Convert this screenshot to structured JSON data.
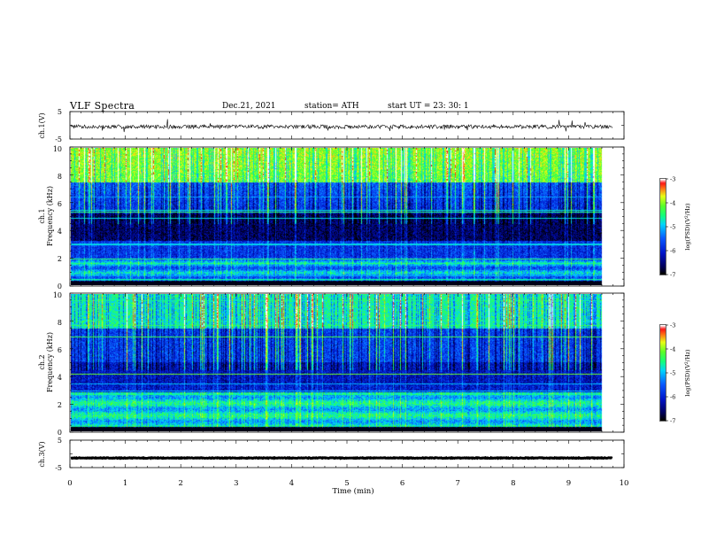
{
  "header": {
    "title": "VLF  Spectra",
    "date": "Dec.21, 2021",
    "station": "station= ATH",
    "start": "start  UT  =     23: 30: 1"
  },
  "chart_data": [
    {
      "type": "line",
      "panel": "ch1-waveform",
      "ylabel": "ch.1(V)",
      "ylim": [
        -5,
        5
      ],
      "y_ticks": [
        "5",
        "-5"
      ],
      "xlim": [
        0,
        10
      ],
      "approx_level": -0.5,
      "color": "#000000"
    },
    {
      "type": "heatmap",
      "panel": "ch1-spectrogram",
      "ylabel": "ch.1 Frequency (kHz)",
      "ylim": [
        0,
        10
      ],
      "y_ticks": [
        "0",
        "2",
        "4",
        "6",
        "8",
        "10"
      ],
      "xlim": [
        0,
        10
      ],
      "colorbar": {
        "label": "log(PSD)(V²/Hz)",
        "ticks": [
          "-3",
          "-4",
          "-5",
          "-6",
          "-7"
        ],
        "range": [
          -7,
          -3
        ]
      }
    },
    {
      "type": "heatmap",
      "panel": "ch2-spectrogram",
      "ylabel": "ch.2 Frequency (kHz)",
      "ylim": [
        0,
        10
      ],
      "y_ticks": [
        "0",
        "2",
        "4",
        "6",
        "8",
        "10"
      ],
      "xlim": [
        0,
        10
      ],
      "colorbar": {
        "label": "log(PSD)(V²/Hz)",
        "ticks": [
          "-3",
          "-4",
          "-5",
          "-6",
          "-7"
        ],
        "range": [
          -7,
          -3
        ]
      }
    },
    {
      "type": "line",
      "panel": "ch3-waveform",
      "ylabel": "ch.3(V)",
      "ylim": [
        -5,
        5
      ],
      "y_ticks": [
        "5",
        "-5"
      ],
      "xlim": [
        0,
        10
      ],
      "approx_level": -1.5,
      "color": "#000000"
    }
  ],
  "x_axis": {
    "xlabel": "Time  (min)",
    "tick_labels": [
      "0",
      "1",
      "2",
      "3",
      "4",
      "5",
      "6",
      "7",
      "8",
      "9",
      "10"
    ],
    "xlim": [
      0,
      10
    ],
    "data_extent": 9.8
  },
  "colors": {
    "background": "#000000",
    "deep_blue": "#000a8c",
    "blue": "#1040ff",
    "cyan": "#00d0ff",
    "green": "#40ff40",
    "yellow": "#e0ff20",
    "red": "#ff2020"
  }
}
